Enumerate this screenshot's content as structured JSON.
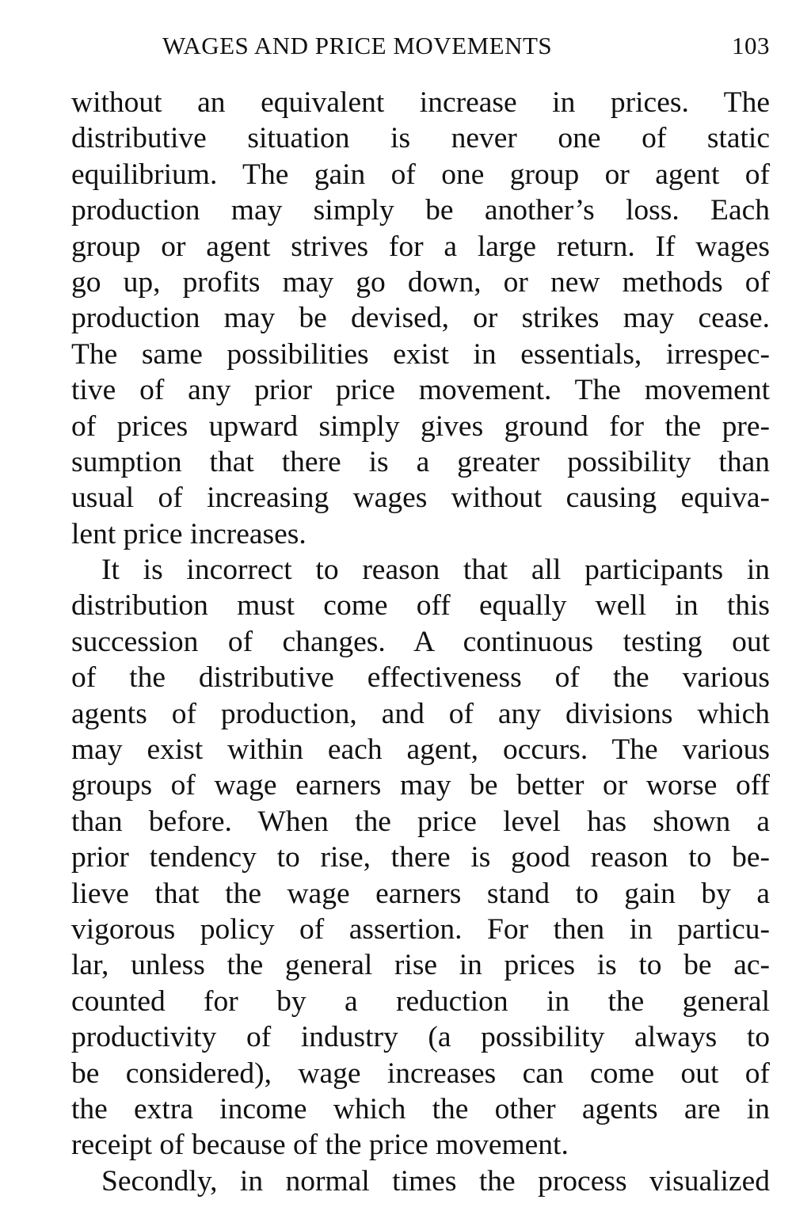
{
  "header": {
    "title": "WAGES AND PRICE MOVEMENTS",
    "page_number": "103"
  },
  "lines": [
    {
      "text": "without an equivalent increase in prices. The",
      "indent": false,
      "last": false
    },
    {
      "text": "distributive situation is never one of static",
      "indent": false,
      "last": false
    },
    {
      "text": "equilibrium. The gain of one group or agent of",
      "indent": false,
      "last": false
    },
    {
      "text": "production may simply be another’s loss. Each",
      "indent": false,
      "last": false
    },
    {
      "text": "group or agent strives for a large return. If wages",
      "indent": false,
      "last": false
    },
    {
      "text": "go up, profits may go down, or new methods of",
      "indent": false,
      "last": false
    },
    {
      "text": "production may be devised, or strikes may cease.",
      "indent": false,
      "last": false
    },
    {
      "text": "The same possibilities exist in essentials, irrespec-",
      "indent": false,
      "last": false
    },
    {
      "text": "tive of any prior price movement. The movement",
      "indent": false,
      "last": false
    },
    {
      "text": "of prices upward simply gives ground for the pre-",
      "indent": false,
      "last": false
    },
    {
      "text": "sumption that there is a greater possibility than",
      "indent": false,
      "last": false
    },
    {
      "text": "usual of increasing wages without causing equiva-",
      "indent": false,
      "last": false
    },
    {
      "text": "lent price increases.",
      "indent": false,
      "last": true
    },
    {
      "text": "It is incorrect to reason that all participants in",
      "indent": true,
      "last": false
    },
    {
      "text": "distribution must come off equally well in this",
      "indent": false,
      "last": false
    },
    {
      "text": "succession of changes. A continuous testing out",
      "indent": false,
      "last": false
    },
    {
      "text": "of the distributive effectiveness of the various",
      "indent": false,
      "last": false
    },
    {
      "text": "agents of production, and of any divisions which",
      "indent": false,
      "last": false
    },
    {
      "text": "may exist within each agent, occurs. The various",
      "indent": false,
      "last": false
    },
    {
      "text": "groups of wage earners may be better or worse off",
      "indent": false,
      "last": false
    },
    {
      "text": "than before. When the price level has shown a",
      "indent": false,
      "last": false
    },
    {
      "text": "prior tendency to rise, there is good reason to be-",
      "indent": false,
      "last": false
    },
    {
      "text": "lieve that the wage earners stand to gain by a",
      "indent": false,
      "last": false
    },
    {
      "text": "vigorous policy of assertion. For then in particu-",
      "indent": false,
      "last": false
    },
    {
      "text": "lar, unless the general rise in prices is to be ac-",
      "indent": false,
      "last": false
    },
    {
      "text": "counted for by a reduction in the general",
      "indent": false,
      "last": false
    },
    {
      "text": "productivity of industry (a possibility always to",
      "indent": false,
      "last": false
    },
    {
      "text": "be considered), wage increases can come out of",
      "indent": false,
      "last": false
    },
    {
      "text": "the extra income which the other agents are in",
      "indent": false,
      "last": false
    },
    {
      "text": "receipt of because of the price movement.",
      "indent": false,
      "last": true
    },
    {
      "text": "Secondly, in normal times the process visualized",
      "indent": true,
      "last": false
    }
  ]
}
